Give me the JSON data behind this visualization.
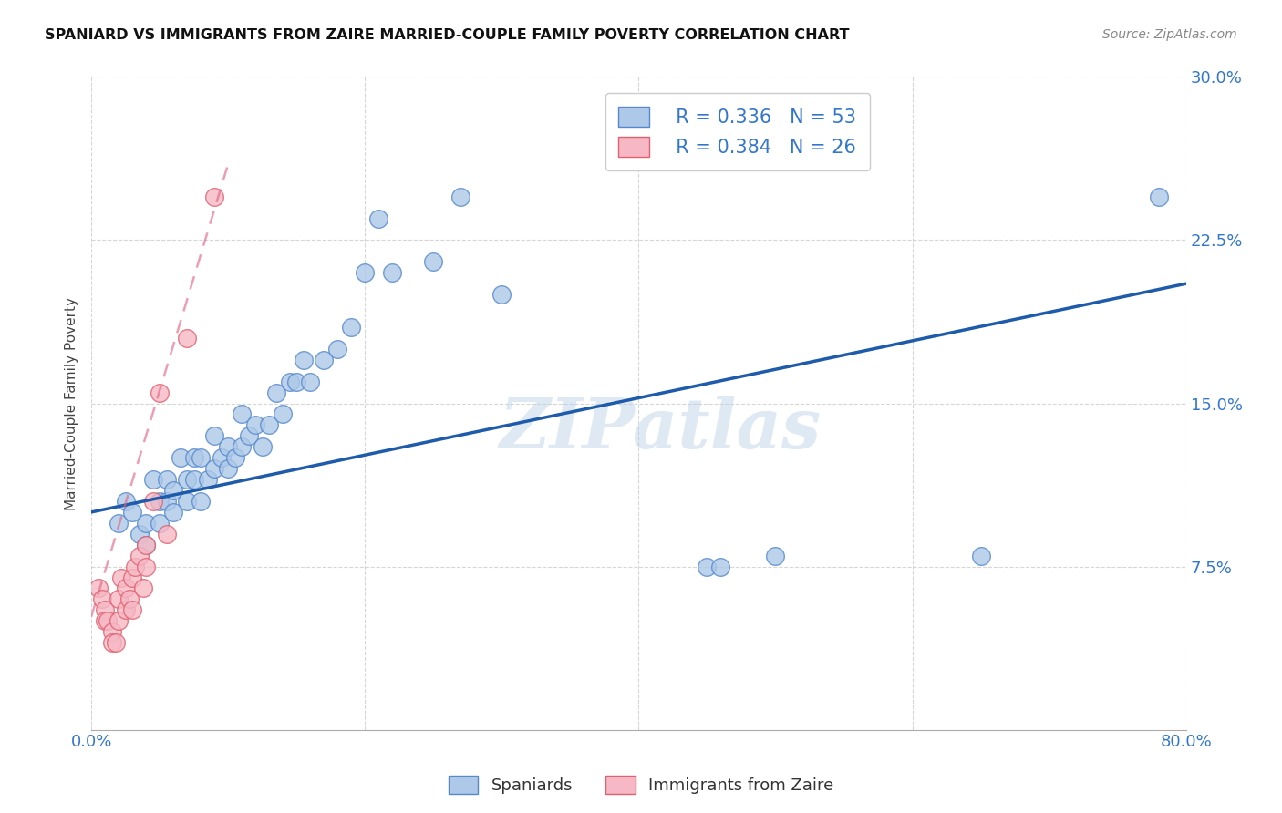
{
  "title": "SPANIARD VS IMMIGRANTS FROM ZAIRE MARRIED-COUPLE FAMILY POVERTY CORRELATION CHART",
  "source": "Source: ZipAtlas.com",
  "xlabel": "",
  "ylabel": "Married-Couple Family Poverty",
  "xlim": [
    0.0,
    0.8
  ],
  "ylim": [
    0.0,
    0.3
  ],
  "xticks": [
    0.0,
    0.2,
    0.4,
    0.6,
    0.8
  ],
  "xticklabels": [
    "0.0%",
    "",
    "",
    "",
    "80.0%"
  ],
  "yticks": [
    0.075,
    0.15,
    0.225,
    0.3
  ],
  "yticklabels": [
    "7.5%",
    "15.0%",
    "22.5%",
    "30.0%"
  ],
  "spaniards_color": "#adc8e8",
  "zaire_color": "#f5b8c4",
  "spaniards_edge": "#5588cc",
  "zaire_edge": "#e06070",
  "trend_blue": "#1e5baa",
  "trend_pink": "#e06080",
  "legend_R_spaniards": "R = 0.336",
  "legend_N_spaniards": "N = 53",
  "legend_R_zaire": "R = 0.384",
  "legend_N_zaire": "N = 26",
  "blue_trend_x0": 0.0,
  "blue_trend_y0": 0.1,
  "blue_trend_x1": 0.8,
  "blue_trend_y1": 0.205,
  "pink_trend_x0": 0.0,
  "pink_trend_y0": 0.052,
  "pink_trend_x1": 0.1,
  "pink_trend_y1": 0.26,
  "spaniards_x": [
    0.02,
    0.025,
    0.03,
    0.035,
    0.04,
    0.04,
    0.045,
    0.05,
    0.05,
    0.055,
    0.055,
    0.06,
    0.06,
    0.065,
    0.07,
    0.07,
    0.075,
    0.075,
    0.08,
    0.08,
    0.085,
    0.09,
    0.09,
    0.095,
    0.1,
    0.1,
    0.105,
    0.11,
    0.11,
    0.115,
    0.12,
    0.125,
    0.13,
    0.135,
    0.14,
    0.145,
    0.15,
    0.155,
    0.16,
    0.17,
    0.18,
    0.19,
    0.2,
    0.21,
    0.22,
    0.25,
    0.27,
    0.3,
    0.45,
    0.46,
    0.5,
    0.65,
    0.78
  ],
  "spaniards_y": [
    0.095,
    0.105,
    0.1,
    0.09,
    0.095,
    0.085,
    0.115,
    0.105,
    0.095,
    0.115,
    0.105,
    0.11,
    0.1,
    0.125,
    0.115,
    0.105,
    0.125,
    0.115,
    0.105,
    0.125,
    0.115,
    0.12,
    0.135,
    0.125,
    0.12,
    0.13,
    0.125,
    0.13,
    0.145,
    0.135,
    0.14,
    0.13,
    0.14,
    0.155,
    0.145,
    0.16,
    0.16,
    0.17,
    0.16,
    0.17,
    0.175,
    0.185,
    0.21,
    0.235,
    0.21,
    0.215,
    0.245,
    0.2,
    0.075,
    0.075,
    0.08,
    0.08,
    0.245
  ],
  "zaire_x": [
    0.005,
    0.008,
    0.01,
    0.01,
    0.012,
    0.015,
    0.015,
    0.018,
    0.02,
    0.02,
    0.022,
    0.025,
    0.025,
    0.028,
    0.03,
    0.03,
    0.032,
    0.035,
    0.038,
    0.04,
    0.04,
    0.045,
    0.05,
    0.055,
    0.07,
    0.09
  ],
  "zaire_y": [
    0.065,
    0.06,
    0.055,
    0.05,
    0.05,
    0.045,
    0.04,
    0.04,
    0.05,
    0.06,
    0.07,
    0.065,
    0.055,
    0.06,
    0.055,
    0.07,
    0.075,
    0.08,
    0.065,
    0.085,
    0.075,
    0.105,
    0.155,
    0.09,
    0.18,
    0.245
  ]
}
